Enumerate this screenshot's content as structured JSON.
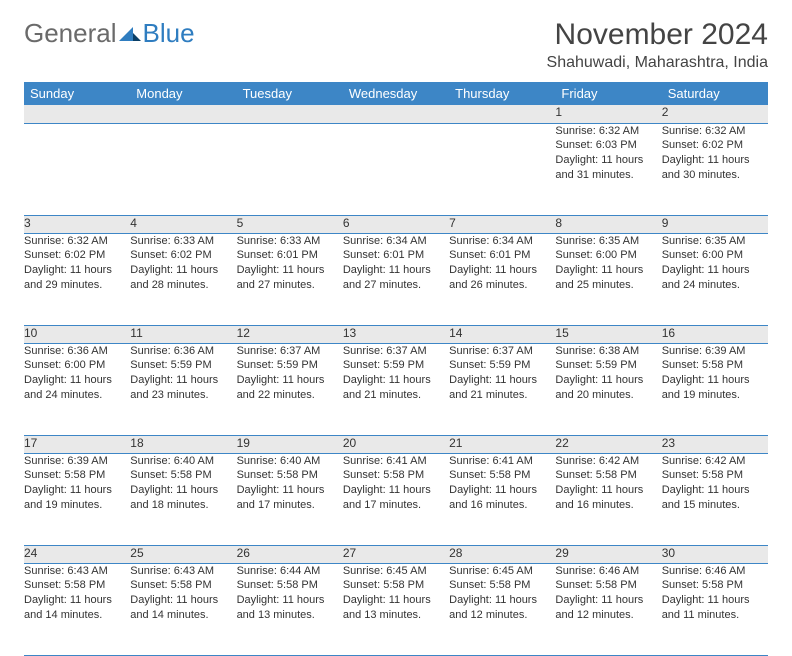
{
  "brand": {
    "general": "General",
    "blue": "Blue"
  },
  "title": "November 2024",
  "location": "Shahuwadi, Maharashtra, India",
  "colors": {
    "header_bg": "#3d86c6",
    "header_fg": "#ffffff",
    "daynum_bg": "#e9e9e9",
    "rule": "#3d86c6",
    "logo_blue": "#2f7dc0",
    "logo_gray": "#6a6a6a"
  },
  "weekdays": [
    "Sunday",
    "Monday",
    "Tuesday",
    "Wednesday",
    "Thursday",
    "Friday",
    "Saturday"
  ],
  "weeks": [
    [
      null,
      null,
      null,
      null,
      null,
      {
        "n": "1",
        "sr": "6:32 AM",
        "ss": "6:03 PM",
        "dl": "11 hours and 31 minutes."
      },
      {
        "n": "2",
        "sr": "6:32 AM",
        "ss": "6:02 PM",
        "dl": "11 hours and 30 minutes."
      }
    ],
    [
      {
        "n": "3",
        "sr": "6:32 AM",
        "ss": "6:02 PM",
        "dl": "11 hours and 29 minutes."
      },
      {
        "n": "4",
        "sr": "6:33 AM",
        "ss": "6:02 PM",
        "dl": "11 hours and 28 minutes."
      },
      {
        "n": "5",
        "sr": "6:33 AM",
        "ss": "6:01 PM",
        "dl": "11 hours and 27 minutes."
      },
      {
        "n": "6",
        "sr": "6:34 AM",
        "ss": "6:01 PM",
        "dl": "11 hours and 27 minutes."
      },
      {
        "n": "7",
        "sr": "6:34 AM",
        "ss": "6:01 PM",
        "dl": "11 hours and 26 minutes."
      },
      {
        "n": "8",
        "sr": "6:35 AM",
        "ss": "6:00 PM",
        "dl": "11 hours and 25 minutes."
      },
      {
        "n": "9",
        "sr": "6:35 AM",
        "ss": "6:00 PM",
        "dl": "11 hours and 24 minutes."
      }
    ],
    [
      {
        "n": "10",
        "sr": "6:36 AM",
        "ss": "6:00 PM",
        "dl": "11 hours and 24 minutes."
      },
      {
        "n": "11",
        "sr": "6:36 AM",
        "ss": "5:59 PM",
        "dl": "11 hours and 23 minutes."
      },
      {
        "n": "12",
        "sr": "6:37 AM",
        "ss": "5:59 PM",
        "dl": "11 hours and 22 minutes."
      },
      {
        "n": "13",
        "sr": "6:37 AM",
        "ss": "5:59 PM",
        "dl": "11 hours and 21 minutes."
      },
      {
        "n": "14",
        "sr": "6:37 AM",
        "ss": "5:59 PM",
        "dl": "11 hours and 21 minutes."
      },
      {
        "n": "15",
        "sr": "6:38 AM",
        "ss": "5:59 PM",
        "dl": "11 hours and 20 minutes."
      },
      {
        "n": "16",
        "sr": "6:39 AM",
        "ss": "5:58 PM",
        "dl": "11 hours and 19 minutes."
      }
    ],
    [
      {
        "n": "17",
        "sr": "6:39 AM",
        "ss": "5:58 PM",
        "dl": "11 hours and 19 minutes."
      },
      {
        "n": "18",
        "sr": "6:40 AM",
        "ss": "5:58 PM",
        "dl": "11 hours and 18 minutes."
      },
      {
        "n": "19",
        "sr": "6:40 AM",
        "ss": "5:58 PM",
        "dl": "11 hours and 17 minutes."
      },
      {
        "n": "20",
        "sr": "6:41 AM",
        "ss": "5:58 PM",
        "dl": "11 hours and 17 minutes."
      },
      {
        "n": "21",
        "sr": "6:41 AM",
        "ss": "5:58 PM",
        "dl": "11 hours and 16 minutes."
      },
      {
        "n": "22",
        "sr": "6:42 AM",
        "ss": "5:58 PM",
        "dl": "11 hours and 16 minutes."
      },
      {
        "n": "23",
        "sr": "6:42 AM",
        "ss": "5:58 PM",
        "dl": "11 hours and 15 minutes."
      }
    ],
    [
      {
        "n": "24",
        "sr": "6:43 AM",
        "ss": "5:58 PM",
        "dl": "11 hours and 14 minutes."
      },
      {
        "n": "25",
        "sr": "6:43 AM",
        "ss": "5:58 PM",
        "dl": "11 hours and 14 minutes."
      },
      {
        "n": "26",
        "sr": "6:44 AM",
        "ss": "5:58 PM",
        "dl": "11 hours and 13 minutes."
      },
      {
        "n": "27",
        "sr": "6:45 AM",
        "ss": "5:58 PM",
        "dl": "11 hours and 13 minutes."
      },
      {
        "n": "28",
        "sr": "6:45 AM",
        "ss": "5:58 PM",
        "dl": "11 hours and 12 minutes."
      },
      {
        "n": "29",
        "sr": "6:46 AM",
        "ss": "5:58 PM",
        "dl": "11 hours and 12 minutes."
      },
      {
        "n": "30",
        "sr": "6:46 AM",
        "ss": "5:58 PM",
        "dl": "11 hours and 11 minutes."
      }
    ]
  ],
  "labels": {
    "sunrise": "Sunrise: ",
    "sunset": "Sunset: ",
    "daylight": "Daylight: "
  }
}
